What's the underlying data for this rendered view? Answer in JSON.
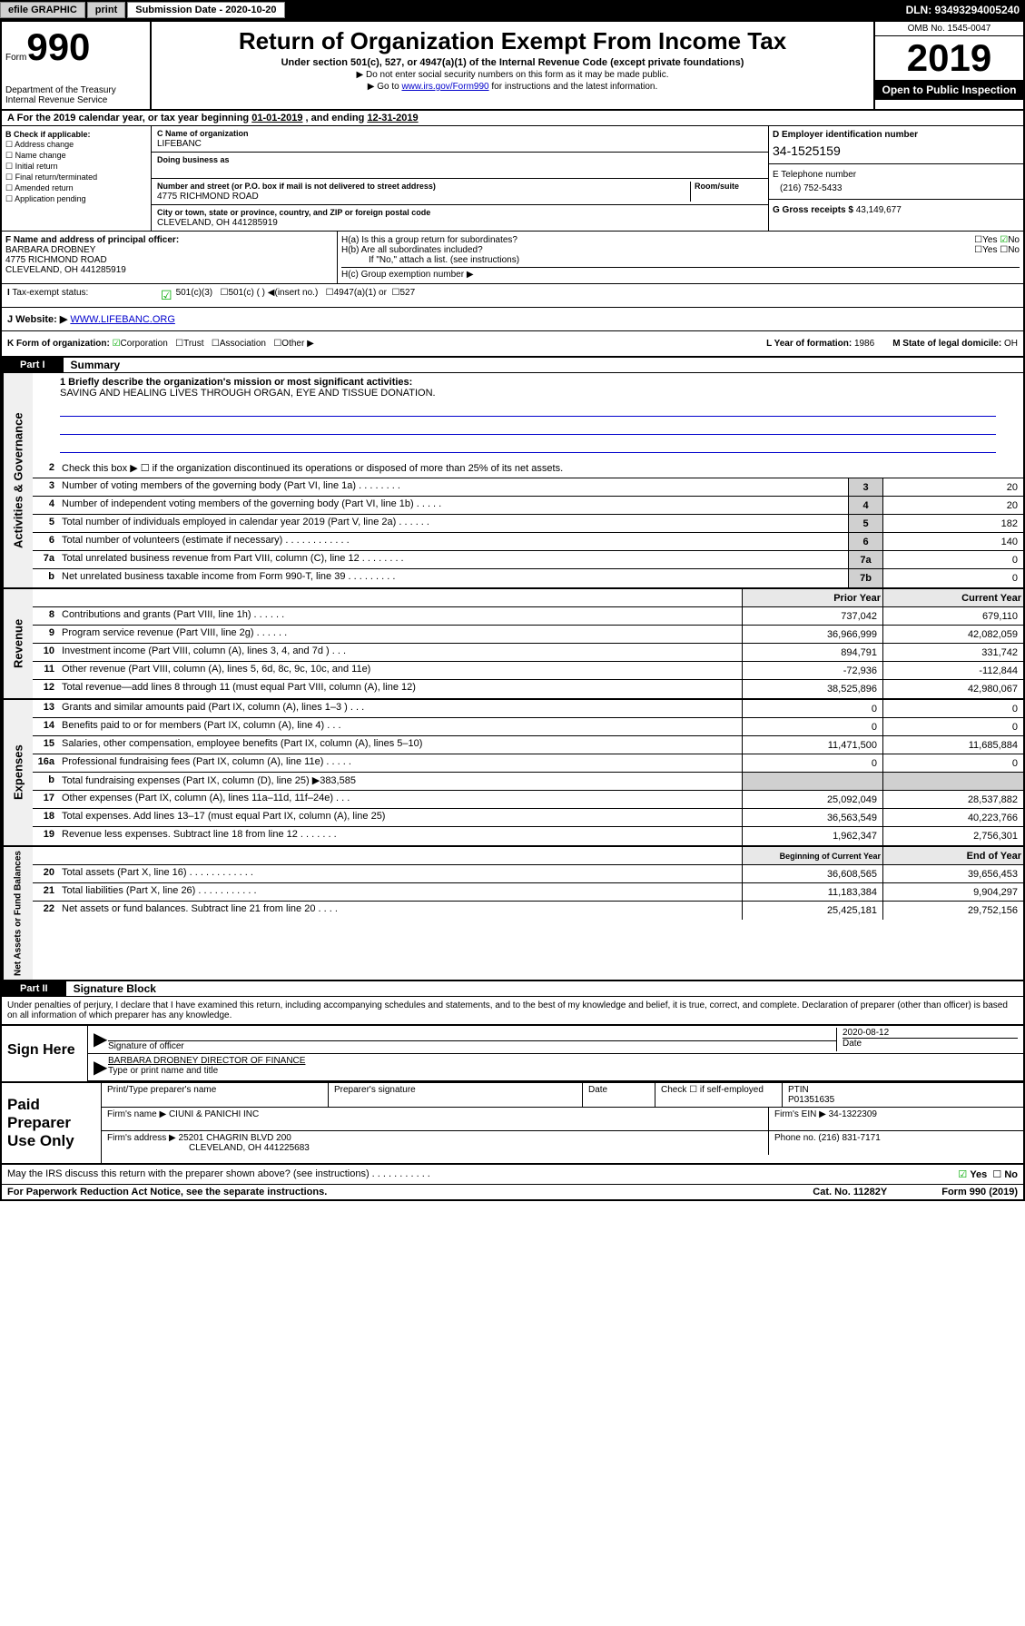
{
  "topbar": {
    "efile": "efile GRAPHIC",
    "print": "print",
    "subdate_lbl": "Submission Date - 2020-10-20",
    "dln": "DLN: 93493294005240"
  },
  "header": {
    "form": "Form",
    "num": "990",
    "dept": "Department of the Treasury\nInternal Revenue Service",
    "title": "Return of Organization Exempt From Income Tax",
    "sub1": "Under section 501(c), 527, or 4947(a)(1) of the Internal Revenue Code (except private foundations)",
    "sub2": "▶ Do not enter social security numbers on this form as it may be made public.",
    "sub3_a": "▶ Go to ",
    "sub3_link": "www.irs.gov/Form990",
    "sub3_b": " for instructions and the latest information.",
    "omb": "OMB No. 1545-0047",
    "year": "2019",
    "badge": "Open to Public Inspection"
  },
  "rowA": {
    "text_a": "For the 2019 calendar year, or tax year beginning ",
    "begin": "01-01-2019",
    "text_b": " , and ending ",
    "end": "12-31-2019"
  },
  "checkB": {
    "hdr": "B Check if applicable:",
    "opts": [
      "Address change",
      "Name change",
      "Initial return",
      "Final return/terminated",
      "Amended return",
      "Application pending"
    ]
  },
  "colC": {
    "name_lbl": "C Name of organization",
    "name": "LIFEBANC",
    "dba_lbl": "Doing business as",
    "addr_lbl": "Number and street (or P.O. box if mail is not delivered to street address)",
    "room_lbl": "Room/suite",
    "addr": "4775 RICHMOND ROAD",
    "city_lbl": "City or town, state or province, country, and ZIP or foreign postal code",
    "city": "CLEVELAND, OH  441285919"
  },
  "colD": {
    "ein_lbl": "D Employer identification number",
    "ein": "34-1525159",
    "tel_lbl": "E Telephone number",
    "tel": "(216) 752-5433",
    "gross_lbl": "G Gross receipts $ ",
    "gross": "43,149,677"
  },
  "colF": {
    "lbl": "F Name and address of principal officer:",
    "name": "BARBARA DROBNEY",
    "addr1": "4775 RICHMOND ROAD",
    "addr2": "CLEVELAND, OH  441285919"
  },
  "colH": {
    "ha": "H(a) Is this a group return for subordinates?",
    "hb": "H(b) Are all subordinates included?",
    "hb_note": "If \"No,\" attach a list. (see instructions)",
    "hc": "H(c) Group exemption number ▶",
    "yes": "Yes",
    "no": "No"
  },
  "rowI": {
    "lbl": "Tax-exempt status:",
    "o1": "501(c)(3)",
    "o2": "501(c) ( ) ◀(insert no.)",
    "o3": "4947(a)(1) or",
    "o4": "527"
  },
  "rowJ": {
    "lbl": "J Website: ▶ ",
    "val": "WWW.LIFEBANC.ORG"
  },
  "rowK": {
    "lbl": "K Form of organization:",
    "opts": [
      "Corporation",
      "Trust",
      "Association",
      "Other ▶"
    ],
    "year_lbl": "L Year of formation: ",
    "year": "1986",
    "state_lbl": "M State of legal domicile: ",
    "state": "OH"
  },
  "part1": {
    "hdr": "Part I",
    "title": "Summary"
  },
  "mission": {
    "lbl": "1 Briefly describe the organization's mission or most significant activities:",
    "text": "SAVING AND HEALING LIVES THROUGH ORGAN, EYE AND TISSUE DONATION."
  },
  "lines_gov": [
    {
      "n": "2",
      "t": "Check this box ▶ ☐ if the organization discontinued its operations or disposed of more than 25% of its net assets."
    },
    {
      "n": "3",
      "t": "Number of voting members of the governing body (Part VI, line 1a) . . . . . . . .",
      "box": "3",
      "v": "20"
    },
    {
      "n": "4",
      "t": "Number of independent voting members of the governing body (Part VI, line 1b) . . . . .",
      "box": "4",
      "v": "20"
    },
    {
      "n": "5",
      "t": "Total number of individuals employed in calendar year 2019 (Part V, line 2a) . . . . . .",
      "box": "5",
      "v": "182"
    },
    {
      "n": "6",
      "t": "Total number of volunteers (estimate if necessary) . . . . . . . . . . . .",
      "box": "6",
      "v": "140"
    },
    {
      "n": "7a",
      "t": "Total unrelated business revenue from Part VIII, column (C), line 12 . . . . . . . .",
      "box": "7a",
      "v": "0"
    },
    {
      "n": "b",
      "t": "Net unrelated business taxable income from Form 990-T, line 39 . . . . . . . . .",
      "box": "7b",
      "v": "0"
    }
  ],
  "colhdr": {
    "prior": "Prior Year",
    "current": "Current Year"
  },
  "lines_rev": [
    {
      "n": "8",
      "t": "Contributions and grants (Part VIII, line 1h) . . . . . .",
      "p": "737,042",
      "c": "679,110"
    },
    {
      "n": "9",
      "t": "Program service revenue (Part VIII, line 2g) . . . . . .",
      "p": "36,966,999",
      "c": "42,082,059"
    },
    {
      "n": "10",
      "t": "Investment income (Part VIII, column (A), lines 3, 4, and 7d ) . . .",
      "p": "894,791",
      "c": "331,742"
    },
    {
      "n": "11",
      "t": "Other revenue (Part VIII, column (A), lines 5, 6d, 8c, 9c, 10c, and 11e)",
      "p": "-72,936",
      "c": "-112,844"
    },
    {
      "n": "12",
      "t": "Total revenue—add lines 8 through 11 (must equal Part VIII, column (A), line 12)",
      "p": "38,525,896",
      "c": "42,980,067"
    }
  ],
  "lines_exp": [
    {
      "n": "13",
      "t": "Grants and similar amounts paid (Part IX, column (A), lines 1–3 ) . . .",
      "p": "0",
      "c": "0"
    },
    {
      "n": "14",
      "t": "Benefits paid to or for members (Part IX, column (A), line 4) . . .",
      "p": "0",
      "c": "0"
    },
    {
      "n": "15",
      "t": "Salaries, other compensation, employee benefits (Part IX, column (A), lines 5–10)",
      "p": "11,471,500",
      "c": "11,685,884"
    },
    {
      "n": "16a",
      "t": "Professional fundraising fees (Part IX, column (A), line 11e) . . . . .",
      "p": "0",
      "c": "0"
    },
    {
      "n": "b",
      "t": "Total fundraising expenses (Part IX, column (D), line 25) ▶383,585",
      "p": "",
      "c": "",
      "grey": true
    },
    {
      "n": "17",
      "t": "Other expenses (Part IX, column (A), lines 11a–11d, 11f–24e) . . .",
      "p": "25,092,049",
      "c": "28,537,882"
    },
    {
      "n": "18",
      "t": "Total expenses. Add lines 13–17 (must equal Part IX, column (A), line 25)",
      "p": "36,563,549",
      "c": "40,223,766"
    },
    {
      "n": "19",
      "t": "Revenue less expenses. Subtract line 18 from line 12 . . . . . . .",
      "p": "1,962,347",
      "c": "2,756,301"
    }
  ],
  "colhdr2": {
    "begin": "Beginning of Current Year",
    "end": "End of Year"
  },
  "lines_net": [
    {
      "n": "20",
      "t": "Total assets (Part X, line 16) . . . . . . . . . . . .",
      "p": "36,608,565",
      "c": "39,656,453"
    },
    {
      "n": "21",
      "t": "Total liabilities (Part X, line 26) . . . . . . . . . . .",
      "p": "11,183,384",
      "c": "9,904,297"
    },
    {
      "n": "22",
      "t": "Net assets or fund balances. Subtract line 21 from line 20 . . . .",
      "p": "25,425,181",
      "c": "29,752,156"
    }
  ],
  "part2": {
    "hdr": "Part II",
    "title": "Signature Block"
  },
  "perjury": "Under penalties of perjury, I declare that I have examined this return, including accompanying schedules and statements, and to the best of my knowledge and belief, it is true, correct, and complete. Declaration of preparer (other than officer) is based on all information of which preparer has any knowledge.",
  "sign": {
    "here": "Sign Here",
    "sig_lbl": "Signature of officer",
    "date": "2020-08-12",
    "date_lbl": "Date",
    "name": "BARBARA DROBNEY  DIRECTOR OF FINANCE",
    "name_lbl": "Type or print name and title"
  },
  "paid": {
    "hdr": "Paid Preparer Use Only",
    "prep_lbl": "Print/Type preparer's name",
    "sig_lbl": "Preparer's signature",
    "date_lbl": "Date",
    "check_lbl": "Check ☐ if self-employed",
    "ptin_lbl": "PTIN",
    "ptin": "P01351635",
    "firm_lbl": "Firm's name    ▶ ",
    "firm": "CIUNI & PANICHI INC",
    "ein_lbl": "Firm's EIN ▶ ",
    "ein": "34-1322309",
    "addr_lbl": "Firm's address ▶ ",
    "addr1": "25201 CHAGRIN BLVD 200",
    "addr2": "CLEVELAND, OH  441225683",
    "phone_lbl": "Phone no. ",
    "phone": "(216) 831-7171"
  },
  "footer": {
    "discuss": "May the IRS discuss this return with the preparer shown above? (see instructions) . . . . . . . . . . .",
    "yes": "Yes",
    "no": "No",
    "pra": "For Paperwork Reduction Act Notice, see the separate instructions.",
    "cat": "Cat. No. 11282Y",
    "form": "Form 990 (2019)"
  },
  "vtabs": {
    "gov": "Activities & Governance",
    "rev": "Revenue",
    "exp": "Expenses",
    "net": "Net Assets or Fund Balances"
  }
}
